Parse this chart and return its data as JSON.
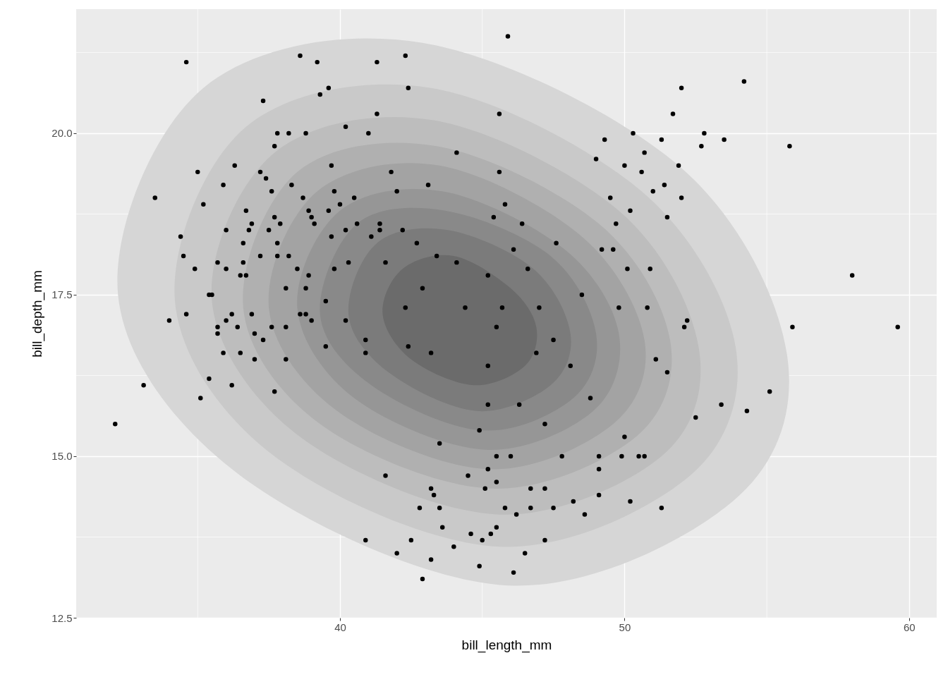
{
  "chart_data": {
    "type": "scatter",
    "xlabel": "bill_length_mm",
    "ylabel": "bill_depth_mm",
    "xlim": [
      30.73,
      60.97
    ],
    "ylim": [
      12.5,
      21.92
    ],
    "xticks": [
      40,
      50,
      60
    ],
    "yticks": [
      12.5,
      {
        "value": 15,
        "label": "15.0"
      },
      17.5,
      {
        "value": 20,
        "label": "20.0"
      }
    ],
    "grid": true,
    "series": [
      {
        "type": "area",
        "color": "#d6d6d6",
        "x": [
          32.2,
          35.2,
          42.9,
          51.9,
          55.7,
          53.8,
          45.9,
          36.5
        ],
        "values": [
          17.5,
          20.7,
          21.4,
          19.5,
          16.6,
          14.3,
          13.0,
          14.7
        ]
      },
      {
        "type": "area",
        "color": "#c9c9c9",
        "x": [
          34.2,
          36.7,
          43.2,
          50.6,
          53.9,
          52.3,
          45.6,
          37.7
        ],
        "values": [
          17.4,
          20.1,
          20.7,
          19.1,
          16.7,
          14.7,
          13.6,
          15.0
        ]
      },
      {
        "type": "area",
        "color": "#bdbdbd",
        "x": [
          35.5,
          37.7,
          43.3,
          49.8,
          52.6,
          51.3,
          45.5,
          38.6
        ],
        "values": [
          17.4,
          19.7,
          20.2,
          18.8,
          16.7,
          15.0,
          14.1,
          15.3
        ]
      },
      {
        "type": "area",
        "color": "#b0b0b0",
        "x": [
          36.6,
          38.5,
          43.4,
          49.1,
          51.6,
          50.4,
          45.3,
          39.3
        ],
        "values": [
          17.3,
          19.4,
          19.8,
          18.6,
          16.8,
          15.3,
          14.5,
          15.5
        ]
      },
      {
        "type": "area",
        "color": "#a3a3a3",
        "x": [
          37.5,
          39.2,
          43.5,
          48.5,
          50.7,
          49.6,
          45.2,
          39.9
        ],
        "values": [
          17.3,
          19.1,
          19.5,
          18.4,
          16.8,
          15.5,
          14.8,
          15.7
        ]
      },
      {
        "type": "area",
        "color": "#969696",
        "x": [
          38.5,
          40.0,
          43.6,
          47.9,
          49.8,
          48.9,
          45.1,
          40.5
        ],
        "values": [
          17.3,
          18.8,
          19.1,
          18.2,
          16.9,
          15.7,
          15.1,
          15.9
        ]
      },
      {
        "type": "area",
        "color": "#898989",
        "x": [
          39.3,
          40.6,
          43.7,
          47.4,
          49.0,
          48.2,
          45.0,
          41.1
        ],
        "values": [
          17.2,
          18.6,
          18.8,
          18.1,
          16.9,
          15.9,
          15.4,
          16.1
        ]
      },
      {
        "type": "area",
        "color": "#7b7b7b",
        "x": [
          40.3,
          41.3,
          43.8,
          46.8,
          48.1,
          47.4,
          44.8,
          41.7
        ],
        "values": [
          17.2,
          18.3,
          18.5,
          17.9,
          16.9,
          16.1,
          15.7,
          16.3
        ]
      },
      {
        "type": "area",
        "color": "#6b6b6b",
        "x": [
          41.5,
          42.2,
          44.0,
          46.0,
          46.9,
          46.5,
          44.7,
          42.5
        ],
        "values": [
          17.2,
          17.9,
          18.1,
          17.6,
          17.0,
          16.4,
          16.1,
          16.5
        ]
      },
      {
        "type": "scatter",
        "color": "#000000",
        "marker": "circle",
        "x": [
          32.1,
          33.1,
          33.5,
          34.0,
          34.4,
          34.5,
          34.6,
          34.6,
          34.9,
          35.0,
          35.1,
          35.2,
          35.4,
          35.4,
          35.5,
          35.7,
          35.7,
          35.7,
          35.9,
          35.9,
          36.0,
          36.0,
          36.0,
          36.2,
          36.2,
          36.3,
          36.4,
          36.5,
          36.5,
          36.6,
          36.6,
          36.7,
          36.7,
          36.8,
          36.9,
          36.9,
          37.0,
          37.0,
          37.2,
          37.2,
          37.3,
          37.3,
          37.4,
          37.5,
          37.6,
          37.6,
          37.7,
          37.7,
          37.8,
          37.7,
          37.8,
          37.8,
          37.9,
          38.1,
          38.1,
          38.1,
          38.2,
          38.2,
          38.3,
          38.5,
          38.6,
          38.6,
          38.7,
          38.8,
          38.8,
          38.8,
          38.9,
          38.9,
          39.0,
          39.0,
          39.1,
          39.2,
          39.3,
          39.5,
          39.5,
          39.6,
          39.6,
          39.7,
          39.7,
          39.8,
          39.8,
          40.0,
          40.2,
          40.2,
          40.2,
          40.3,
          40.5,
          40.6,
          40.9,
          40.9,
          40.9,
          41.0,
          41.1,
          41.3,
          41.3,
          41.4,
          41.4,
          41.6,
          41.6,
          41.8,
          42.0,
          42.0,
          42.2,
          42.3,
          42.3,
          42.4,
          42.4,
          42.5,
          42.7,
          42.8,
          42.9,
          42.9,
          43.1,
          43.2,
          43.2,
          43.3,
          43.4,
          43.5,
          43.6,
          44.0,
          44.1,
          44.1,
          44.4,
          44.5,
          44.9,
          44.9,
          45.1,
          45.2,
          45.2,
          45.2,
          45.3,
          45.4,
          45.5,
          45.6,
          45.6,
          45.7,
          45.8,
          45.9,
          46.1,
          46.1,
          46.3,
          46.4,
          46.5,
          46.6,
          46.9,
          47.0,
          47.2,
          47.2,
          47.5,
          47.6,
          47.8,
          48.1,
          48.2,
          48.5,
          48.6,
          48.8,
          49.0,
          49.2,
          49.3,
          49.5,
          49.6,
          49.7,
          49.8,
          50.0,
          50.0,
          50.1,
          50.2,
          50.2,
          50.3,
          50.6,
          50.7,
          50.8,
          50.9,
          51.0,
          51.1,
          51.3,
          51.3,
          51.4,
          51.5,
          51.5,
          51.7,
          51.9,
          52.0,
          52.0,
          52.1,
          52.2,
          52.5,
          52.7,
          52.8,
          53.4,
          53.5,
          54.2,
          54.3,
          55.1,
          55.8,
          55.9,
          58.0,
          59.6,
          49.1,
          49.9,
          50.5,
          50.7,
          46.0,
          45.5,
          49.1,
          45.2,
          45.5,
          46.7,
          47.2,
          45.8,
          46.2,
          46.7,
          47.5,
          49.1,
          43.5,
          43.2,
          45.5,
          44.6,
          45.0
        ],
        "values": [
          15.5,
          16.1,
          19.0,
          17.1,
          18.4,
          18.1,
          21.1,
          17.2,
          17.9,
          19.4,
          15.9,
          18.9,
          17.5,
          16.2,
          17.5,
          18.0,
          17.0,
          16.9,
          19.2,
          16.6,
          18.5,
          17.9,
          17.1,
          17.2,
          16.1,
          19.5,
          17.0,
          16.6,
          17.8,
          18.0,
          18.3,
          18.8,
          17.8,
          18.5,
          18.6,
          17.2,
          16.5,
          16.9,
          19.4,
          18.1,
          20.5,
          16.8,
          19.3,
          18.5,
          19.1,
          17.0,
          16.0,
          19.8,
          20.0,
          18.7,
          18.3,
          18.1,
          18.6,
          17.6,
          17.0,
          16.5,
          20.0,
          18.1,
          19.2,
          17.9,
          17.2,
          21.2,
          19.0,
          20.0,
          17.2,
          17.6,
          18.8,
          17.8,
          17.1,
          18.7,
          18.6,
          21.1,
          20.6,
          17.4,
          16.7,
          20.7,
          18.8,
          19.5,
          18.4,
          19.1,
          17.9,
          18.9,
          20.1,
          17.1,
          18.5,
          18.0,
          19.0,
          18.6,
          16.8,
          16.6,
          13.7,
          20.0,
          18.4,
          21.1,
          20.3,
          18.6,
          18.5,
          18.0,
          14.7,
          19.4,
          13.5,
          19.1,
          18.5,
          21.2,
          17.3,
          20.7,
          16.7,
          13.7,
          18.3,
          14.2,
          17.6,
          13.1,
          19.2,
          16.6,
          13.4,
          14.4,
          18.1,
          15.2,
          13.9,
          13.6,
          19.7,
          18.0,
          17.3,
          14.7,
          13.3,
          15.4,
          14.5,
          15.8,
          16.4,
          17.8,
          13.8,
          18.7,
          17.0,
          20.3,
          19.4,
          17.3,
          18.9,
          21.5,
          13.2,
          18.2,
          15.8,
          18.6,
          13.5,
          17.9,
          16.6,
          17.3,
          15.5,
          13.7,
          16.8,
          18.3,
          15.0,
          16.4,
          14.3,
          17.5,
          14.1,
          15.9,
          19.6,
          18.2,
          19.9,
          19.0,
          18.2,
          18.6,
          17.3,
          19.5,
          15.3,
          17.9,
          18.8,
          14.3,
          20.0,
          19.4,
          19.7,
          17.3,
          17.9,
          19.1,
          16.5,
          14.2,
          19.9,
          19.2,
          16.3,
          18.7,
          20.3,
          19.5,
          20.7,
          19.0,
          17.0,
          17.1,
          15.6,
          19.8,
          20.0,
          15.8,
          19.9,
          20.8,
          15.7,
          16.0,
          19.8,
          17.0,
          17.8,
          17.0,
          15.0,
          15.0,
          15.0,
          15.0,
          15.0,
          15.0,
          14.8,
          14.8,
          14.6,
          14.5,
          14.5,
          14.2,
          14.1,
          14.2,
          14.2,
          14.4,
          14.2,
          14.5,
          13.9,
          13.8,
          13.7
        ]
      }
    ]
  }
}
